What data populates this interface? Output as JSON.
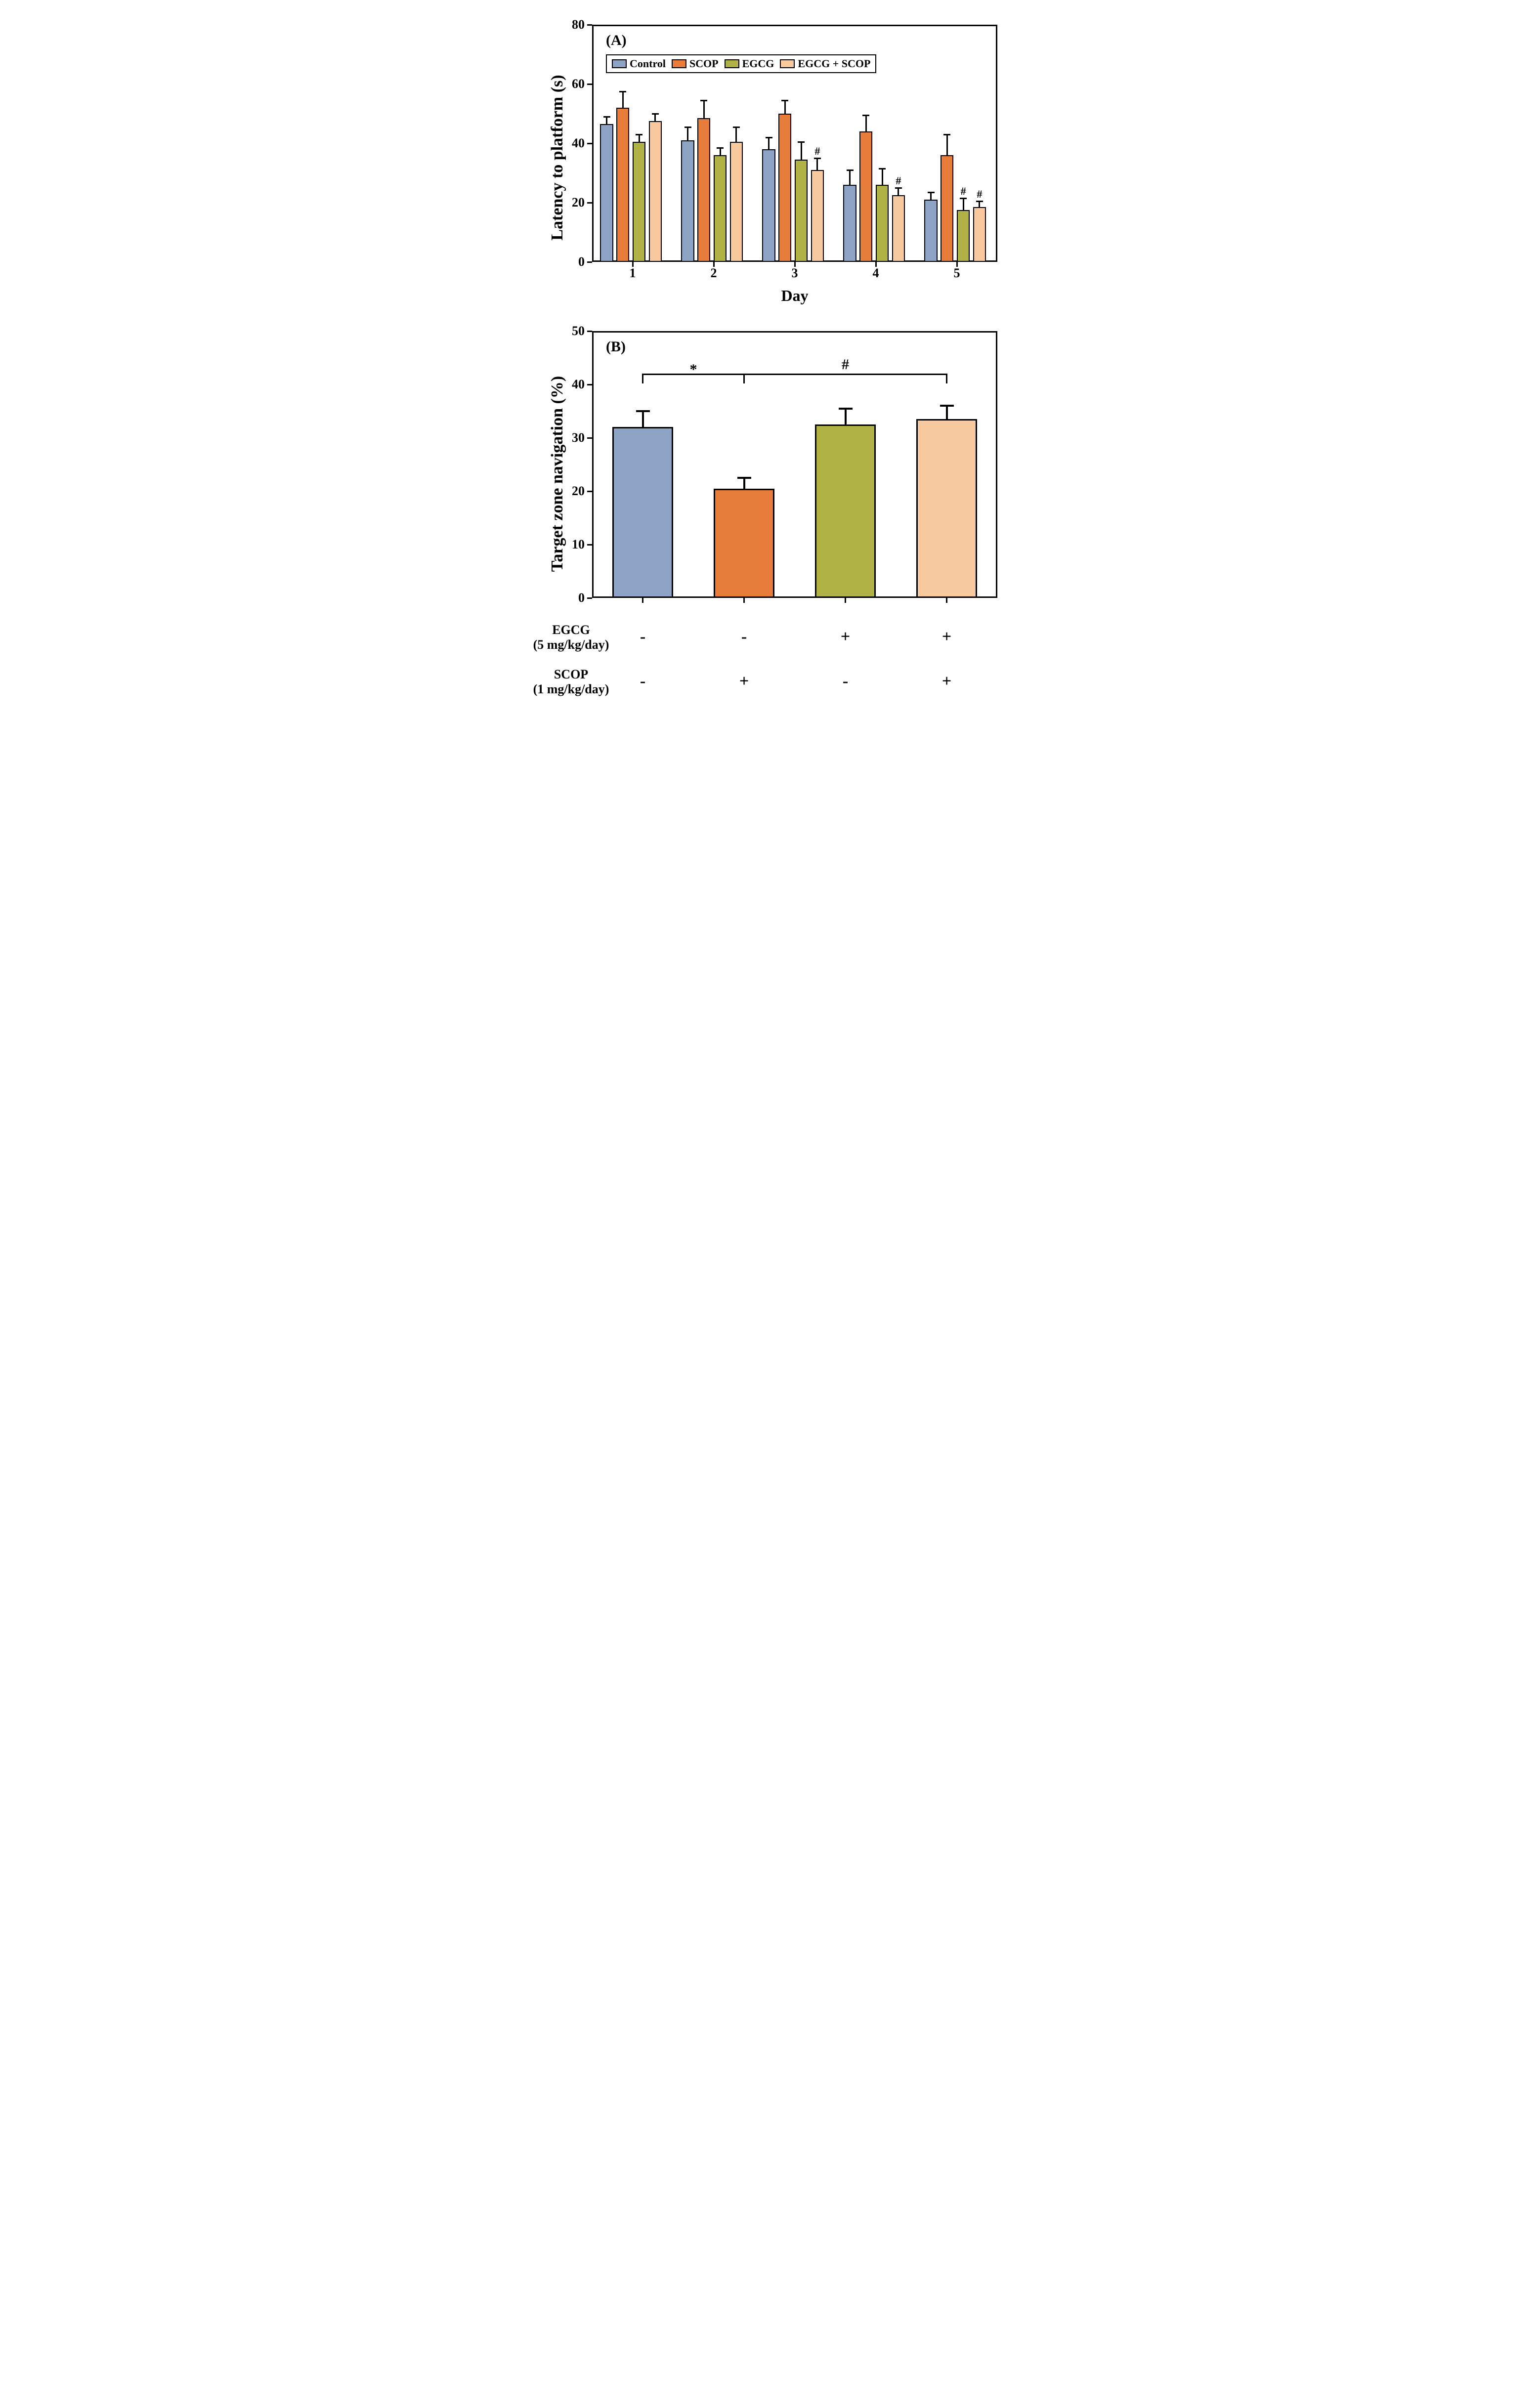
{
  "global": {
    "background": "#ffffff",
    "axis_color": "#000000",
    "font_family": "Times New Roman",
    "axis_line_width": 3,
    "bar_border_width": 2
  },
  "panelA": {
    "label": "(A)",
    "label_fontsize": 30,
    "type": "grouped_bar",
    "y_label": "Latency to platform (s)",
    "y_label_fontsize": 34,
    "x_label": "Day",
    "x_label_fontsize": 32,
    "ylim": [
      0,
      80
    ],
    "ytick_step": 20,
    "yticks": [
      0,
      20,
      40,
      60,
      80
    ],
    "tick_fontsize": 26,
    "categories": [
      "1",
      "2",
      "3",
      "4",
      "5"
    ],
    "series": [
      {
        "name": "Control",
        "color": "#8da4c4"
      },
      {
        "name": "SCOP",
        "color": "#e77c3b"
      },
      {
        "name": "EGCG",
        "color": "#b0b246"
      },
      {
        "name": "EGCG + SCOP",
        "color": "#f9caa0"
      }
    ],
    "legend_fontsize": 22,
    "bar_width_rel": 0.18,
    "group_gap_rel": 0.1,
    "data": {
      "Control": [
        46.5,
        41,
        38,
        26,
        21
      ],
      "SCOP": [
        52,
        48.5,
        50,
        44,
        36
      ],
      "EGCG": [
        40.5,
        36,
        34.5,
        26,
        17.5
      ],
      "EGCG + SCOP": [
        47.5,
        40.5,
        31,
        22.5,
        18.5
      ]
    },
    "errors": {
      "Control": [
        2.5,
        4.5,
        4,
        5,
        2.5
      ],
      "SCOP": [
        5.5,
        6,
        4.5,
        5.5,
        7
      ],
      "EGCG": [
        2.5,
        2.5,
        6,
        5.5,
        4
      ],
      "EGCG + SCOP": [
        2.5,
        5,
        4,
        2.5,
        2
      ]
    },
    "annotations": [
      {
        "day_index": 2,
        "series_index": 3,
        "symbol": "#"
      },
      {
        "day_index": 3,
        "series_index": 3,
        "symbol": "#"
      },
      {
        "day_index": 4,
        "series_index": 2,
        "symbol": "#"
      },
      {
        "day_index": 4,
        "series_index": 3,
        "symbol": "#"
      }
    ],
    "annot_fontsize": 22
  },
  "panelB": {
    "label": "(B)",
    "label_fontsize": 30,
    "type": "bar",
    "y_label": "Target zone navigation (%)",
    "y_label_fontsize": 34,
    "ylim": [
      0,
      50
    ],
    "ytick_step": 10,
    "yticks": [
      0,
      10,
      20,
      30,
      40,
      50
    ],
    "tick_fontsize": 26,
    "bars": [
      {
        "name": "Control",
        "color": "#8da4c4",
        "value": 32,
        "error": 3
      },
      {
        "name": "SCOP",
        "color": "#e77c3b",
        "value": 20.5,
        "error": 2
      },
      {
        "name": "EGCG",
        "color": "#b0b246",
        "value": 32.5,
        "error": 3
      },
      {
        "name": "EGCG + SCOP",
        "color": "#f9caa0",
        "value": 33.5,
        "error": 2.5
      }
    ],
    "bar_width_rel": 0.6,
    "bar_border_width": 3,
    "significance": [
      {
        "from_bar": 0,
        "to_bar": 1,
        "symbol": "*",
        "y": 42
      },
      {
        "from_bar": 1,
        "to_bar": 3,
        "symbol": "#",
        "y": 42
      }
    ],
    "sig_fontsize": 30,
    "treatment_rows": [
      {
        "label_line1": "EGCG",
        "label_line2": "(5 mg/kg/day)",
        "cells": [
          "-",
          "-",
          "+",
          "+"
        ]
      },
      {
        "label_line1": "SCOP",
        "label_line2": "(1 mg/kg/day)",
        "cells": [
          "-",
          "+",
          "-",
          "+"
        ]
      }
    ],
    "treatment_fontsize": 26,
    "treatment_cell_fontsize": 34
  }
}
